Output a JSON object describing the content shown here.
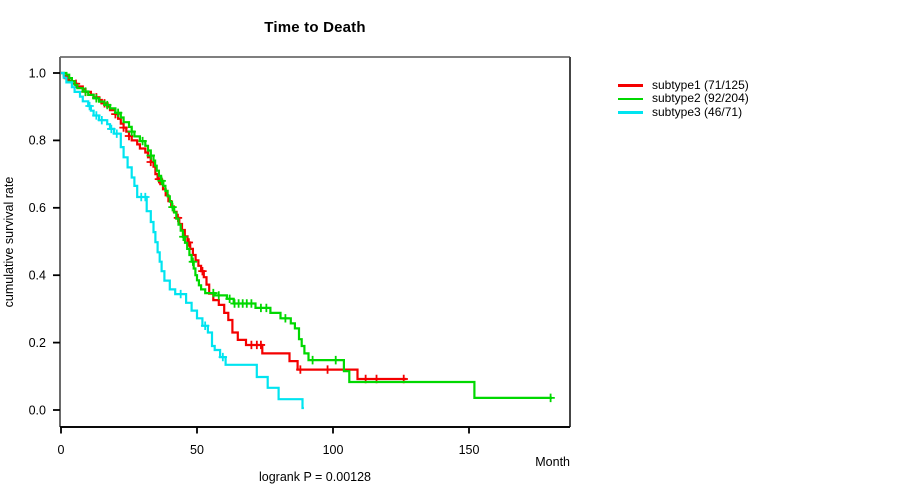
{
  "chart_data": {
    "type": "line",
    "variant": "kaplan-meier-step",
    "title": "Time to Death",
    "xlabel": "Month",
    "ylabel": "cumulative survival rate",
    "annotation": "logrank P = 0.00128",
    "xlim": [
      0,
      187
    ],
    "ylim": [
      0,
      1.0
    ],
    "xticks": [
      0,
      50,
      100,
      150
    ],
    "yticks": [
      0.0,
      0.2,
      0.4,
      0.6,
      0.8,
      1.0
    ],
    "grid": false,
    "legend_position": "right-outside",
    "series": [
      {
        "name": "subtype1",
        "label": "subtype1 (71/125)",
        "events": 71,
        "n": 125,
        "color": "#f40000",
        "end_month": 127,
        "points": [
          [
            0,
            1
          ],
          [
            1,
            0.992
          ],
          [
            2,
            0.984
          ],
          [
            3,
            0.976
          ],
          [
            5,
            0.968
          ],
          [
            6,
            0.96
          ],
          [
            8,
            0.952
          ],
          [
            9,
            0.944
          ],
          [
            11,
            0.936
          ],
          [
            12,
            0.928
          ],
          [
            14,
            0.92
          ],
          [
            15,
            0.91
          ],
          [
            17,
            0.9
          ],
          [
            18,
            0.89
          ],
          [
            20,
            0.878
          ],
          [
            21,
            0.864
          ],
          [
            22,
            0.85
          ],
          [
            23,
            0.838
          ],
          [
            24,
            0.826
          ],
          [
            25,
            0.813
          ],
          [
            26,
            0.8
          ],
          [
            28,
            0.788
          ],
          [
            29,
            0.776
          ],
          [
            31,
            0.764
          ],
          [
            32,
            0.75
          ],
          [
            33,
            0.736
          ],
          [
            34,
            0.722
          ],
          [
            34.7,
            0.7
          ],
          [
            35.5,
            0.685
          ],
          [
            36.5,
            0.67
          ],
          [
            37.5,
            0.655
          ],
          [
            38.5,
            0.637
          ],
          [
            39.5,
            0.62
          ],
          [
            40.5,
            0.604
          ],
          [
            41.5,
            0.588
          ],
          [
            42.5,
            0.57
          ],
          [
            43.5,
            0.552
          ],
          [
            44.5,
            0.534
          ],
          [
            45.5,
            0.515
          ],
          [
            46.5,
            0.497
          ],
          [
            47.5,
            0.478
          ],
          [
            48.5,
            0.46
          ],
          [
            49.5,
            0.444
          ],
          [
            50.5,
            0.428
          ],
          [
            51.5,
            0.412
          ],
          [
            52.5,
            0.394
          ],
          [
            53.5,
            0.372
          ],
          [
            54.5,
            0.345
          ],
          [
            56,
            0.326
          ],
          [
            58,
            0.312
          ],
          [
            60,
            0.288
          ],
          [
            61.5,
            0.267
          ],
          [
            63,
            0.23
          ],
          [
            65,
            0.208
          ],
          [
            68,
            0.193
          ],
          [
            74,
            0.168
          ],
          [
            84,
            0.145
          ],
          [
            87,
            0.12
          ],
          [
            109,
            0.092
          ]
        ],
        "censor_months": [
          2.5,
          5.5,
          9,
          13,
          16,
          20,
          23,
          25,
          33,
          36,
          43,
          47,
          52,
          70,
          72,
          73.5,
          88,
          98,
          112,
          116,
          126
        ]
      },
      {
        "name": "subtype2",
        "label": "subtype2 (92/204)",
        "events": 92,
        "n": 204,
        "color": "#00d800",
        "end_month": 180.5,
        "points": [
          [
            0,
            1
          ],
          [
            2,
            0.995
          ],
          [
            3,
            0.985
          ],
          [
            4,
            0.975
          ],
          [
            5,
            0.965
          ],
          [
            6,
            0.955
          ],
          [
            8,
            0.945
          ],
          [
            10,
            0.935
          ],
          [
            12,
            0.925
          ],
          [
            14,
            0.915
          ],
          [
            16,
            0.905
          ],
          [
            18,
            0.895
          ],
          [
            20,
            0.882
          ],
          [
            22,
            0.868
          ],
          [
            23,
            0.854
          ],
          [
            25,
            0.84
          ],
          [
            26,
            0.826
          ],
          [
            27,
            0.812
          ],
          [
            29,
            0.798
          ],
          [
            31,
            0.784
          ],
          [
            32,
            0.77
          ],
          [
            33,
            0.755
          ],
          [
            34,
            0.74
          ],
          [
            34.6,
            0.725
          ],
          [
            35.2,
            0.71
          ],
          [
            36,
            0.695
          ],
          [
            36.8,
            0.68
          ],
          [
            37.6,
            0.665
          ],
          [
            38.4,
            0.65
          ],
          [
            39.2,
            0.634
          ],
          [
            40,
            0.618
          ],
          [
            40.8,
            0.602
          ],
          [
            41.6,
            0.586
          ],
          [
            42.4,
            0.568
          ],
          [
            43.2,
            0.55
          ],
          [
            44,
            0.532
          ],
          [
            44.8,
            0.514
          ],
          [
            45.6,
            0.496
          ],
          [
            46.4,
            0.478
          ],
          [
            47.2,
            0.46
          ],
          [
            48,
            0.44
          ],
          [
            48.8,
            0.42
          ],
          [
            49.4,
            0.4
          ],
          [
            50,
            0.385
          ],
          [
            50.7,
            0.37
          ],
          [
            51.5,
            0.358
          ],
          [
            53,
            0.347
          ],
          [
            56.5,
            0.34
          ],
          [
            61,
            0.33
          ],
          [
            63.5,
            0.316
          ],
          [
            71.5,
            0.303
          ],
          [
            77,
            0.288
          ],
          [
            80.7,
            0.272
          ],
          [
            84.5,
            0.257
          ],
          [
            86,
            0.242
          ],
          [
            87.5,
            0.21
          ],
          [
            88.5,
            0.19
          ],
          [
            89.5,
            0.168
          ],
          [
            91,
            0.148
          ],
          [
            104,
            0.115
          ],
          [
            106,
            0.083
          ],
          [
            152,
            0.036
          ]
        ],
        "censor_months": [
          4,
          9,
          13,
          17,
          21,
          26,
          30,
          33,
          37,
          41,
          45,
          48.5,
          56,
          58,
          62,
          63.8,
          65.3,
          66.8,
          68.3,
          70,
          73.5,
          75.5,
          82.5,
          92.5,
          101,
          180
        ]
      },
      {
        "name": "subtype3",
        "label": "subtype3 (46/71)",
        "events": 46,
        "n": 71,
        "color": "#00e4f0",
        "end_month": 89.3,
        "points": [
          [
            0,
            1
          ],
          [
            1,
            0.986
          ],
          [
            2,
            0.972
          ],
          [
            4,
            0.958
          ],
          [
            5,
            0.944
          ],
          [
            7,
            0.93
          ],
          [
            8,
            0.916
          ],
          [
            10,
            0.902
          ],
          [
            11,
            0.888
          ],
          [
            12,
            0.874
          ],
          [
            14,
            0.86
          ],
          [
            17,
            0.848
          ],
          [
            18,
            0.834
          ],
          [
            19.5,
            0.82
          ],
          [
            22,
            0.78
          ],
          [
            23,
            0.75
          ],
          [
            24.5,
            0.72
          ],
          [
            26,
            0.69
          ],
          [
            27,
            0.665
          ],
          [
            28,
            0.632
          ],
          [
            31.5,
            0.59
          ],
          [
            33,
            0.558
          ],
          [
            34,
            0.528
          ],
          [
            34.7,
            0.498
          ],
          [
            35.5,
            0.468
          ],
          [
            36.3,
            0.44
          ],
          [
            37,
            0.412
          ],
          [
            38,
            0.384
          ],
          [
            40,
            0.358
          ],
          [
            42,
            0.344
          ],
          [
            46,
            0.318
          ],
          [
            48,
            0.295
          ],
          [
            50,
            0.272
          ],
          [
            52,
            0.25
          ],
          [
            54,
            0.23
          ],
          [
            55.5,
            0.19
          ],
          [
            56.5,
            0.178
          ],
          [
            58.5,
            0.157
          ],
          [
            60.5,
            0.134
          ],
          [
            72,
            0.098
          ],
          [
            76,
            0.066
          ],
          [
            80,
            0.032
          ],
          [
            88.8,
            0.006
          ]
        ],
        "censor_months": [
          10.5,
          13,
          15,
          18.5,
          20.5,
          29.5,
          31,
          44,
          53,
          59.5
        ]
      }
    ],
    "axis_colors": {
      "box_top": "#7f7f7f",
      "box_right": "#454545",
      "box_left": "#6a6a6a",
      "box_bottom": "#0a0a0a",
      "tick": "#000000"
    }
  }
}
